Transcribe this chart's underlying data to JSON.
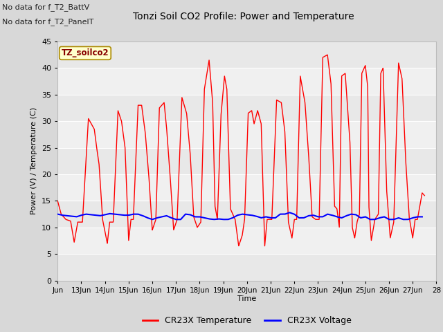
{
  "title": "Tonzi Soil CO2 Profile: Power and Temperature",
  "ylabel": "Power (V) / Temperature (C)",
  "xlabel": "Time",
  "top_text_1": "No data for f_T2_BattV",
  "top_text_2": "No data for f_T2_PanelT",
  "legend_label": "TZ_soilco2",
  "legend_box_color": "#ffffcc",
  "legend_border_color": "#aa8800",
  "ylim": [
    0,
    45
  ],
  "yticks": [
    0,
    5,
    10,
    15,
    20,
    25,
    30,
    35,
    40,
    45
  ],
  "xlim_start": 12.0,
  "xlim_end": 28.0,
  "xtick_positions": [
    12,
    13,
    14,
    15,
    16,
    17,
    18,
    19,
    20,
    21,
    22,
    23,
    24,
    25,
    26,
    27,
    28
  ],
  "xtick_labels": [
    "Jun",
    "13Jun",
    "14Jun",
    "15Jun",
    "16Jun",
    "17Jun",
    "18Jun",
    "19Jun",
    "20Jun",
    "21Jun",
    "22Jun",
    "23Jun",
    "24Jun",
    "25Jun",
    "26Jun",
    "27Jun",
    "28"
  ],
  "fig_bg_color": "#d8d8d8",
  "plot_bg_alt1": "#e8e8e8",
  "plot_bg_alt2": "#f0f0f0",
  "grid_color": "#ffffff",
  "temp_color": "#ff0000",
  "volt_color": "#0000ff",
  "legend_line1": "CR23X Temperature",
  "legend_line2": "CR23X Voltage",
  "temp_x": [
    12.0,
    12.15,
    12.35,
    12.55,
    12.7,
    12.85,
    13.05,
    13.3,
    13.55,
    13.65,
    13.75,
    13.9,
    14.1,
    14.2,
    14.35,
    14.55,
    14.7,
    14.85,
    15.0,
    15.1,
    15.2,
    15.4,
    15.55,
    15.7,
    15.85,
    16.0,
    16.15,
    16.3,
    16.5,
    16.6,
    16.75,
    16.9,
    17.05,
    17.25,
    17.45,
    17.6,
    17.75,
    17.9,
    18.05,
    18.2,
    18.4,
    18.55,
    18.65,
    18.75,
    18.9,
    19.05,
    19.15,
    19.3,
    19.5,
    19.65,
    19.8,
    19.9,
    20.05,
    20.2,
    20.3,
    20.45,
    20.6,
    20.75,
    20.85,
    20.95,
    21.05,
    21.25,
    21.45,
    21.6,
    21.75,
    21.9,
    22.0,
    22.1,
    22.25,
    22.45,
    22.6,
    22.75,
    22.9,
    23.05,
    23.2,
    23.4,
    23.55,
    23.7,
    23.8,
    23.9,
    24.0,
    24.15,
    24.35,
    24.45,
    24.55,
    24.65,
    24.75,
    24.85,
    25.0,
    25.1,
    25.15,
    25.25,
    25.4,
    25.55,
    25.65,
    25.75,
    25.9,
    26.05,
    26.2,
    26.4,
    26.55,
    26.7,
    26.85,
    27.0,
    27.1,
    27.2,
    27.4,
    27.5
  ],
  "temp_y": [
    15.0,
    12.5,
    11.5,
    11.2,
    7.2,
    11.0,
    11.0,
    30.5,
    28.5,
    25.0,
    22.0,
    11.5,
    7.0,
    11.0,
    11.0,
    32.0,
    30.0,
    25.0,
    7.5,
    11.5,
    11.5,
    33.0,
    33.0,
    28.0,
    20.0,
    9.5,
    11.5,
    32.5,
    33.5,
    29.0,
    20.0,
    9.5,
    11.5,
    34.5,
    31.5,
    24.0,
    12.0,
    10.0,
    11.0,
    36.0,
    41.5,
    33.5,
    14.0,
    11.5,
    31.0,
    38.5,
    36.0,
    13.5,
    11.5,
    6.5,
    8.5,
    11.5,
    31.5,
    32.0,
    29.5,
    32.0,
    29.5,
    6.5,
    11.5,
    11.5,
    11.5,
    34.0,
    33.5,
    28.0,
    11.0,
    8.0,
    11.5,
    11.5,
    38.5,
    33.5,
    24.0,
    12.0,
    11.5,
    11.5,
    42.0,
    42.5,
    37.0,
    14.0,
    13.5,
    10.0,
    38.5,
    39.0,
    26.0,
    10.0,
    8.0,
    11.0,
    12.5,
    39.0,
    40.5,
    36.5,
    14.0,
    7.5,
    11.5,
    12.5,
    39.0,
    40.0,
    17.0,
    8.0,
    11.0,
    41.0,
    38.0,
    23.0,
    12.0,
    8.0,
    11.5,
    11.5,
    16.5,
    16.0
  ],
  "volt_x": [
    12.0,
    12.2,
    12.4,
    12.6,
    12.8,
    13.0,
    13.2,
    13.4,
    13.6,
    13.8,
    14.0,
    14.2,
    14.4,
    14.6,
    14.8,
    15.0,
    15.2,
    15.4,
    15.6,
    15.8,
    16.0,
    16.2,
    16.4,
    16.6,
    16.8,
    17.0,
    17.2,
    17.4,
    17.6,
    17.8,
    18.0,
    18.2,
    18.4,
    18.6,
    18.8,
    19.0,
    19.2,
    19.4,
    19.6,
    19.8,
    20.0,
    20.2,
    20.4,
    20.6,
    20.8,
    21.0,
    21.2,
    21.4,
    21.6,
    21.8,
    22.0,
    22.2,
    22.4,
    22.6,
    22.8,
    23.0,
    23.2,
    23.4,
    23.6,
    23.8,
    24.0,
    24.2,
    24.4,
    24.6,
    24.8,
    25.0,
    25.2,
    25.4,
    25.6,
    25.8,
    26.0,
    26.2,
    26.4,
    26.6,
    26.8,
    27.0,
    27.2,
    27.4
  ],
  "volt_y": [
    12.5,
    12.3,
    12.2,
    12.1,
    12.0,
    12.3,
    12.5,
    12.4,
    12.3,
    12.2,
    12.4,
    12.6,
    12.5,
    12.4,
    12.3,
    12.3,
    12.5,
    12.5,
    12.2,
    11.8,
    11.5,
    11.8,
    12.0,
    12.2,
    11.8,
    11.5,
    11.5,
    12.5,
    12.4,
    12.0,
    12.0,
    11.8,
    11.6,
    11.5,
    11.6,
    11.5,
    11.5,
    11.8,
    12.3,
    12.5,
    12.4,
    12.3,
    12.1,
    11.8,
    12.0,
    11.8,
    11.8,
    12.5,
    12.5,
    12.8,
    12.5,
    11.8,
    11.8,
    12.2,
    12.3,
    12.0,
    12.0,
    12.5,
    12.3,
    12.0,
    11.8,
    12.2,
    12.5,
    12.4,
    11.8,
    12.0,
    11.5,
    11.5,
    11.8,
    12.0,
    11.5,
    11.5,
    11.8,
    11.5,
    11.5,
    11.8,
    12.0,
    12.0
  ]
}
